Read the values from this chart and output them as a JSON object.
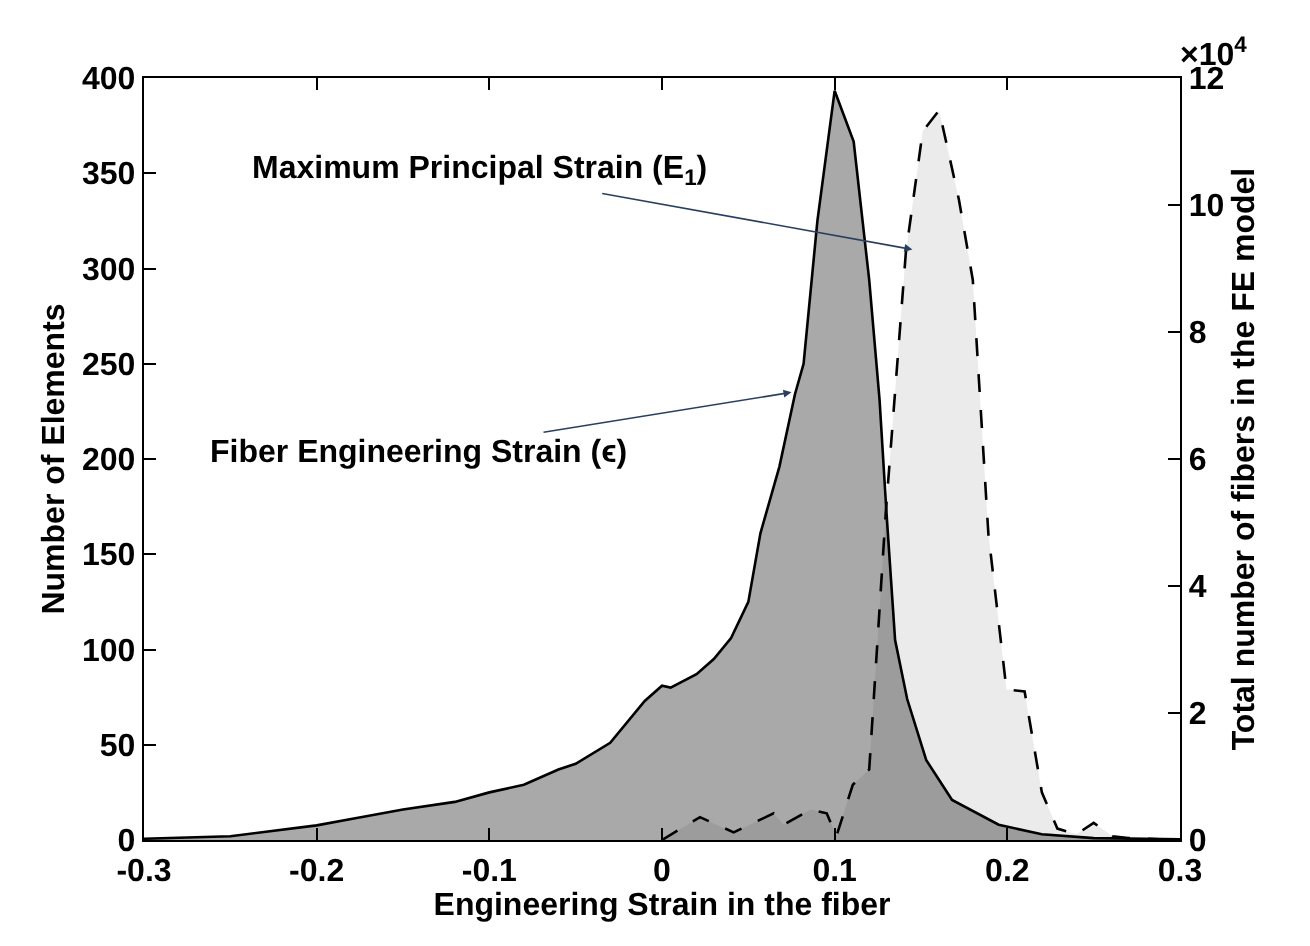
{
  "chart_data": {
    "type": "area",
    "xlabel": "Engineering Strain in the fiber",
    "ylabel": "Number of Elements",
    "y2label": "Total number of fibers in the FE model",
    "series": [
      {
        "color": "#ebebeb",
        "line_style": "dashed",
        "axis": "y",
        "x": [
          0,
          0.022,
          0.0415,
          0.0646,
          0.0704,
          0.086,
          0.0954,
          0.101,
          0.1105,
          0.12,
          0.1296,
          0.1412,
          0.151,
          0.1605,
          0.172,
          0.18,
          0.189,
          0.1995,
          0.21,
          0.22,
          0.229,
          0.24,
          0.25,
          0.261,
          0.27,
          0.3
        ],
        "values": [
          0,
          12,
          4,
          14,
          8,
          16,
          14,
          2,
          29,
          37,
          172,
          308,
          372,
          383,
          336,
          294,
          161,
          79,
          78,
          25,
          6,
          3,
          9,
          2,
          1,
          0
        ]
      },
      {
        "color": "#a9a9a9",
        "line_style": "solid",
        "axis": "y2",
        "x": [
          -0.3,
          -0.25,
          -0.2,
          -0.18,
          -0.15,
          -0.12,
          -0.1,
          -0.08,
          -0.06,
          -0.05,
          -0.03,
          -0.01,
          0,
          0.005,
          0.02,
          0.03,
          0.04,
          0.05,
          0.057,
          0.068,
          0.077,
          0.082,
          0.09,
          0.1,
          0.111,
          0.12,
          0.126,
          0.13,
          0.135,
          0.142,
          0.153,
          0.168,
          0.195,
          0.22,
          0.25,
          0.3
        ],
        "values": [
          0.02,
          0.06,
          0.23,
          0.33,
          0.48,
          0.6,
          0.75,
          0.87,
          1.11,
          1.2,
          1.53,
          2.19,
          2.43,
          2.4,
          2.61,
          2.85,
          3.18,
          3.75,
          4.83,
          5.88,
          7.02,
          7.5,
          9.75,
          11.8,
          11.0,
          8.82,
          6.93,
          5.16,
          3.15,
          2.22,
          1.26,
          0.63,
          0.24,
          0.09,
          0.03,
          0.01
        ]
      }
    ],
    "xlim": [
      -0.3,
      0.3
    ],
    "xticks": [
      -0.3,
      -0.2,
      -0.1,
      0,
      0.1,
      0.2,
      0.3
    ],
    "ylim": [
      0,
      400
    ],
    "yticks": [
      0,
      50,
      100,
      150,
      200,
      250,
      300,
      350,
      400
    ],
    "y2lim": [
      0,
      12
    ],
    "y2ticks": [
      0,
      2,
      4,
      6,
      8,
      10,
      12
    ],
    "annotations": [
      {
        "text": "Maximum Principal Strain (E$_{1}$)",
        "x": 0.145,
        "y": 310
      },
      {
        "text": "Fiber Engineering Strain (ϵ)",
        "x": 0.075,
        "y": 235
      },
      "×10$^{4}$"
    ],
    "legend": false
  }
}
